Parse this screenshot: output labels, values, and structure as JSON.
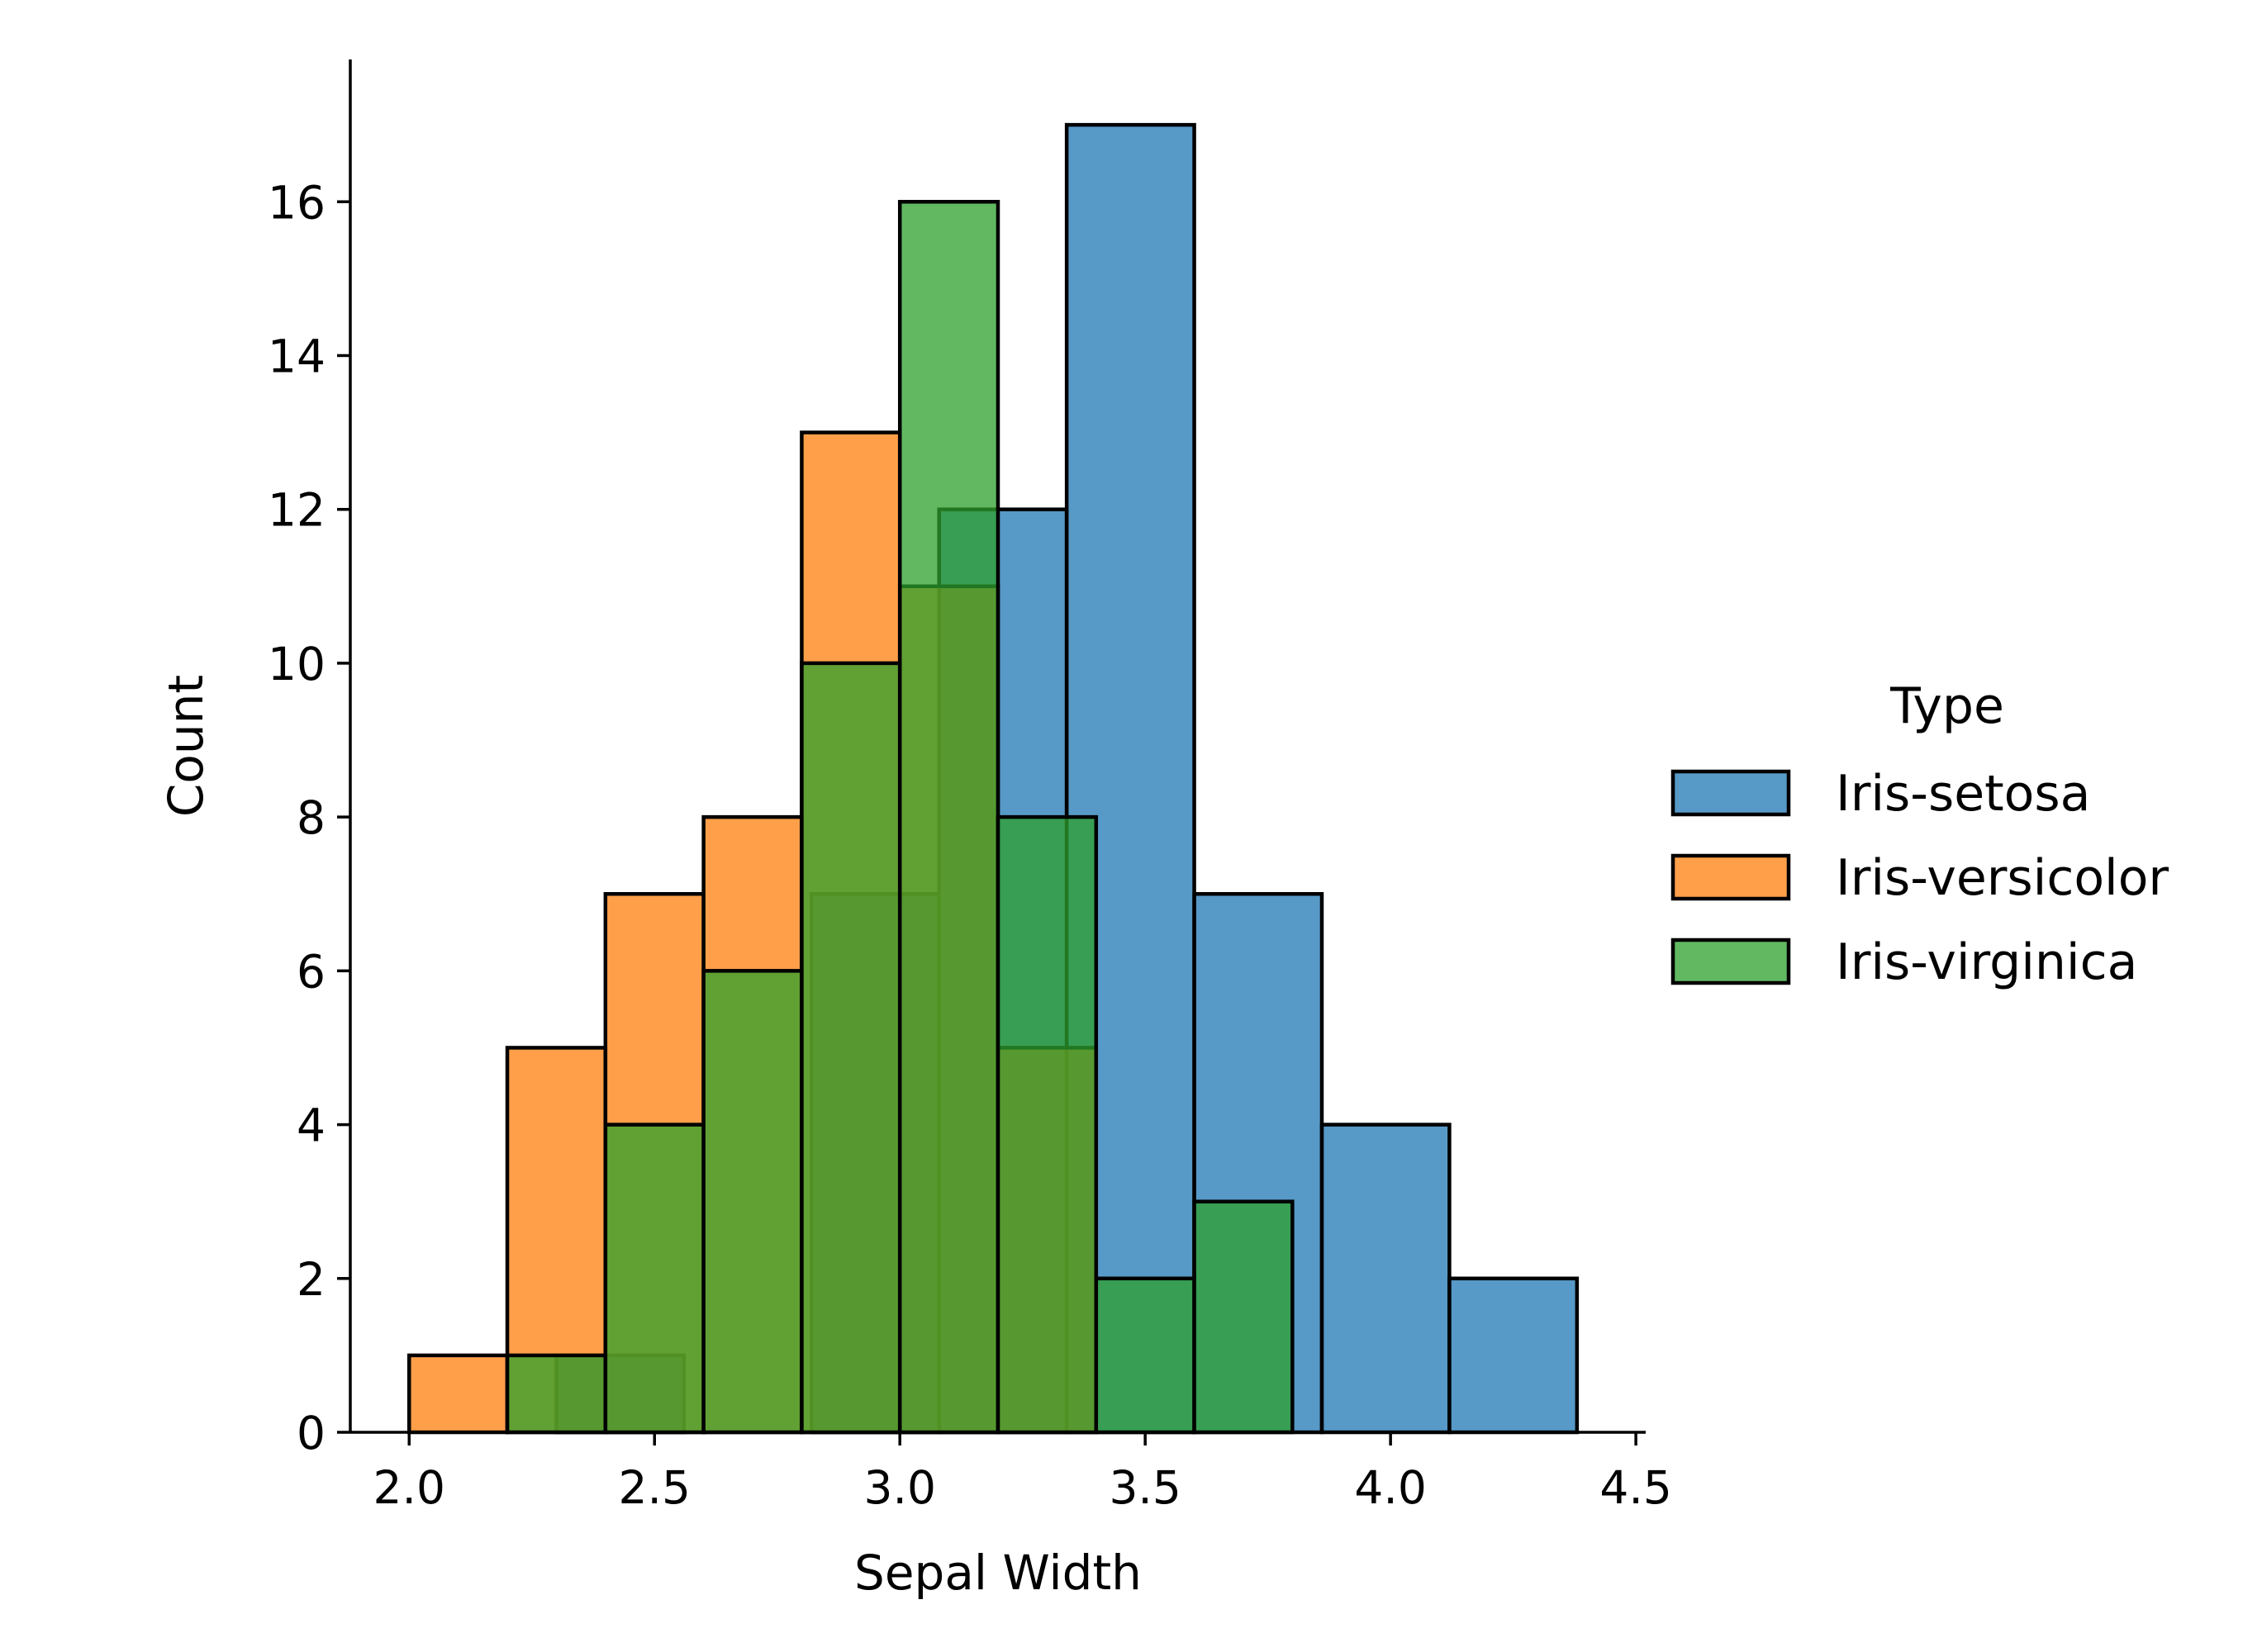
{
  "chart_data": {
    "type": "bar",
    "subtype": "overlapping-histogram",
    "title": "",
    "xlabel": "Sepal Width",
    "ylabel": "Count",
    "xlim": [
      1.88,
      4.52
    ],
    "ylim": [
      0,
      17.85
    ],
    "xticks": [
      2.0,
      2.5,
      3.0,
      3.5,
      4.0,
      4.5
    ],
    "xtick_labels": [
      "2.0",
      "2.5",
      "3.0",
      "3.5",
      "4.0",
      "4.5"
    ],
    "yticks": [
      0,
      2,
      4,
      6,
      8,
      10,
      12,
      14,
      16
    ],
    "ytick_labels": [
      "0",
      "2",
      "4",
      "6",
      "8",
      "10",
      "12",
      "14",
      "16"
    ],
    "grid": false,
    "legend": {
      "title": "Type",
      "placement": "right"
    },
    "series": [
      {
        "name": "Iris-setosa",
        "color": "#1f77b4",
        "bins": [
          {
            "x0": 2.3,
            "x1": 2.56,
            "count": 1
          },
          {
            "x0": 2.56,
            "x1": 2.82,
            "count": 0
          },
          {
            "x0": 2.82,
            "x1": 3.08,
            "count": 7
          },
          {
            "x0": 3.08,
            "x1": 3.34,
            "count": 12
          },
          {
            "x0": 3.34,
            "x1": 3.6,
            "count": 17
          },
          {
            "x0": 3.6,
            "x1": 3.86,
            "count": 7
          },
          {
            "x0": 3.86,
            "x1": 4.12,
            "count": 4
          },
          {
            "x0": 4.12,
            "x1": 4.38,
            "count": 2
          }
        ]
      },
      {
        "name": "Iris-versicolor",
        "color": "#ff7f0e",
        "bins": [
          {
            "x0": 2.0,
            "x1": 2.2,
            "count": 1
          },
          {
            "x0": 2.2,
            "x1": 2.4,
            "count": 5
          },
          {
            "x0": 2.4,
            "x1": 2.6,
            "count": 7
          },
          {
            "x0": 2.6,
            "x1": 2.8,
            "count": 8
          },
          {
            "x0": 2.8,
            "x1": 3.0,
            "count": 13
          },
          {
            "x0": 3.0,
            "x1": 3.2,
            "count": 11
          },
          {
            "x0": 3.2,
            "x1": 3.4,
            "count": 5
          }
        ]
      },
      {
        "name": "Iris-virginica",
        "color": "#2ca02c",
        "bins": [
          {
            "x0": 2.2,
            "x1": 2.4,
            "count": 1
          },
          {
            "x0": 2.4,
            "x1": 2.6,
            "count": 4
          },
          {
            "x0": 2.6,
            "x1": 2.8,
            "count": 6
          },
          {
            "x0": 2.8,
            "x1": 3.0,
            "count": 10
          },
          {
            "x0": 3.0,
            "x1": 3.2,
            "count": 16
          },
          {
            "x0": 3.2,
            "x1": 3.4,
            "count": 8
          },
          {
            "x0": 3.4,
            "x1": 3.6,
            "count": 2
          },
          {
            "x0": 3.6,
            "x1": 3.8,
            "count": 3
          }
        ]
      }
    ]
  }
}
